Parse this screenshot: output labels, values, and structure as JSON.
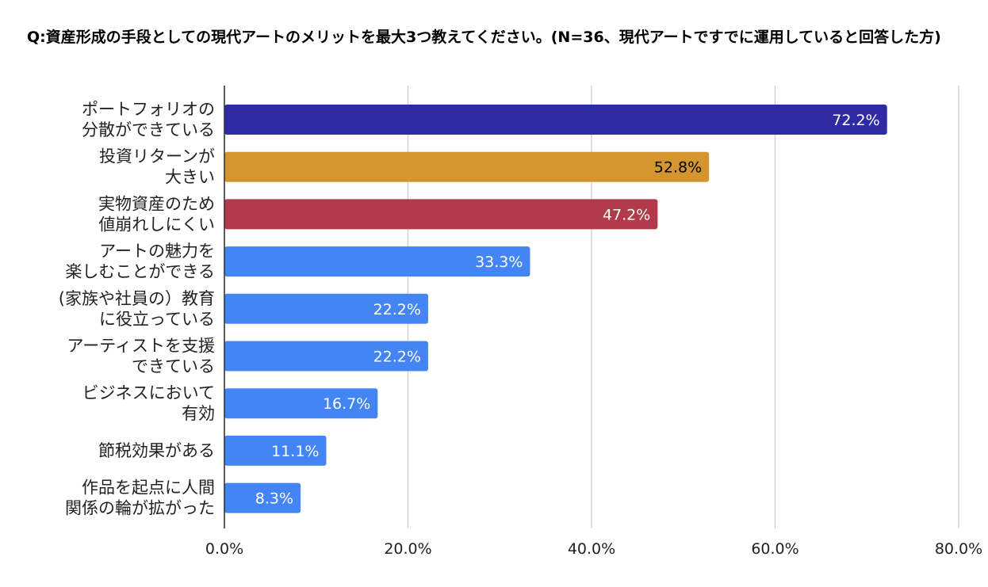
{
  "chart_data": {
    "type": "bar",
    "orientation": "horizontal",
    "title": "Q:資産形成の手段としての現代アートのメリットを最大3つ教えてください。(N=36、現代アートですでに運用していると回答した方)",
    "categories": [
      [
        "ポートフォリオの",
        "分散ができている"
      ],
      [
        "投資リターンが",
        "大きい"
      ],
      [
        "実物資産のため",
        "値崩れしにくい"
      ],
      [
        "アートの魅力を",
        "楽しむことができる"
      ],
      [
        "(家族や社員の）教育",
        "に役立っている"
      ],
      [
        "アーティストを支援",
        "できている"
      ],
      [
        "ビジネスにおいて",
        "有効"
      ],
      [
        "節税効果がある"
      ],
      [
        "作品を起点に人間",
        "関係の輪が拡がった"
      ]
    ],
    "values": [
      72.2,
      52.8,
      47.2,
      33.3,
      22.2,
      22.2,
      16.7,
      11.1,
      8.3
    ],
    "value_labels": [
      "72.2%",
      "52.8%",
      "47.2%",
      "33.3%",
      "22.2%",
      "22.2%",
      "16.7%",
      "11.1%",
      "8.3%"
    ],
    "bar_colors": [
      "#2e2ba3",
      "#d4952f",
      "#b23b4b",
      "#4385f5",
      "#4385f5",
      "#4385f5",
      "#4385f5",
      "#4385f5",
      "#4385f5"
    ],
    "label_colors": [
      "#ffffff",
      "#000000",
      "#ffffff",
      "#ffffff",
      "#ffffff",
      "#ffffff",
      "#ffffff",
      "#ffffff",
      "#ffffff"
    ],
    "x_ticks": [
      "0.0%",
      "20.0%",
      "40.0%",
      "60.0%",
      "80.0%"
    ],
    "xlim": [
      0,
      80
    ],
    "grid": true,
    "legend": "none"
  }
}
